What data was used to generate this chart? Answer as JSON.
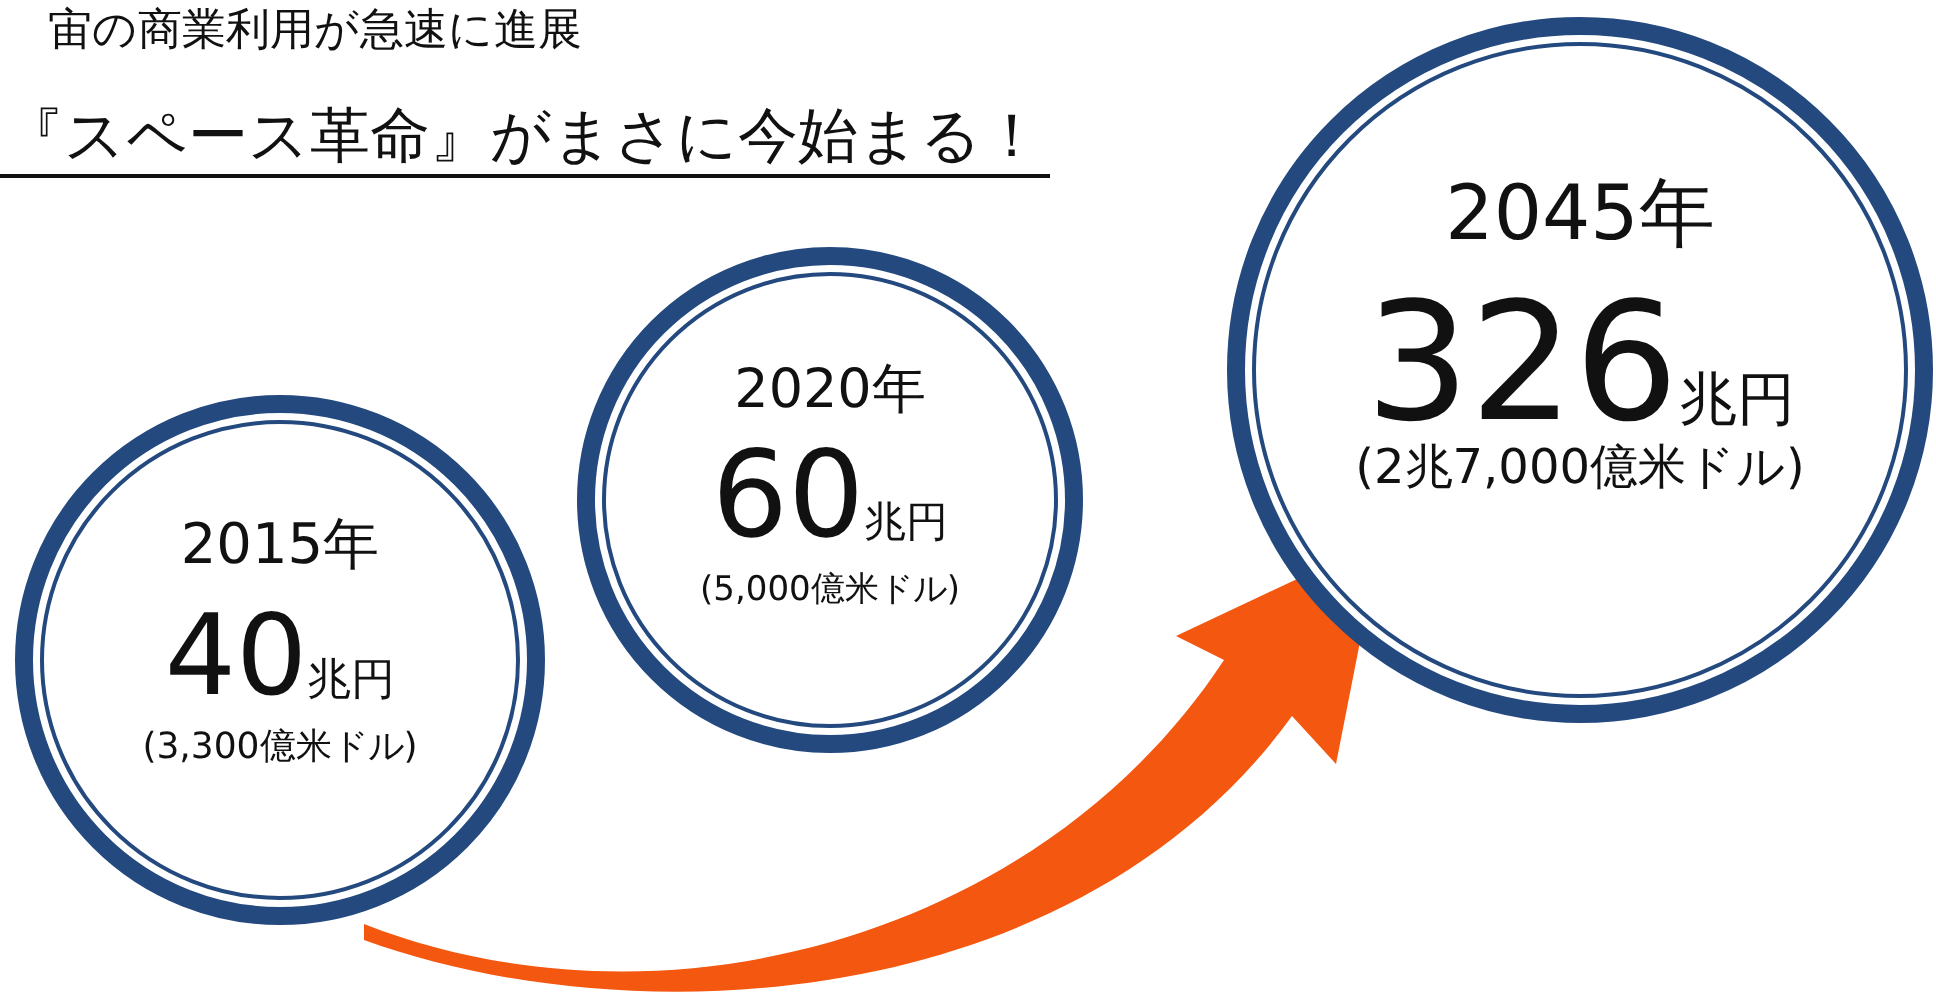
{
  "chart_data": {
    "type": "other",
    "title": "宙の商業利用が急速に進展",
    "subtitle": "『スペース革命』がまさに今始まる！",
    "categories": [
      "2015年",
      "2020年",
      "2045年"
    ],
    "values": [
      40,
      60,
      326
    ],
    "value_labels": [
      "40兆円",
      "60兆円",
      "326兆円"
    ],
    "color": "#23497f",
    "annotations": [
      {
        "text": "(3,300億米ドル)",
        "x": "2015年"
      },
      {
        "text": "(5,000億米ドル)",
        "x": "2020年"
      },
      {
        "text": "(2兆7,000億米ドル)",
        "x": "2045年"
      }
    ]
  }
}
